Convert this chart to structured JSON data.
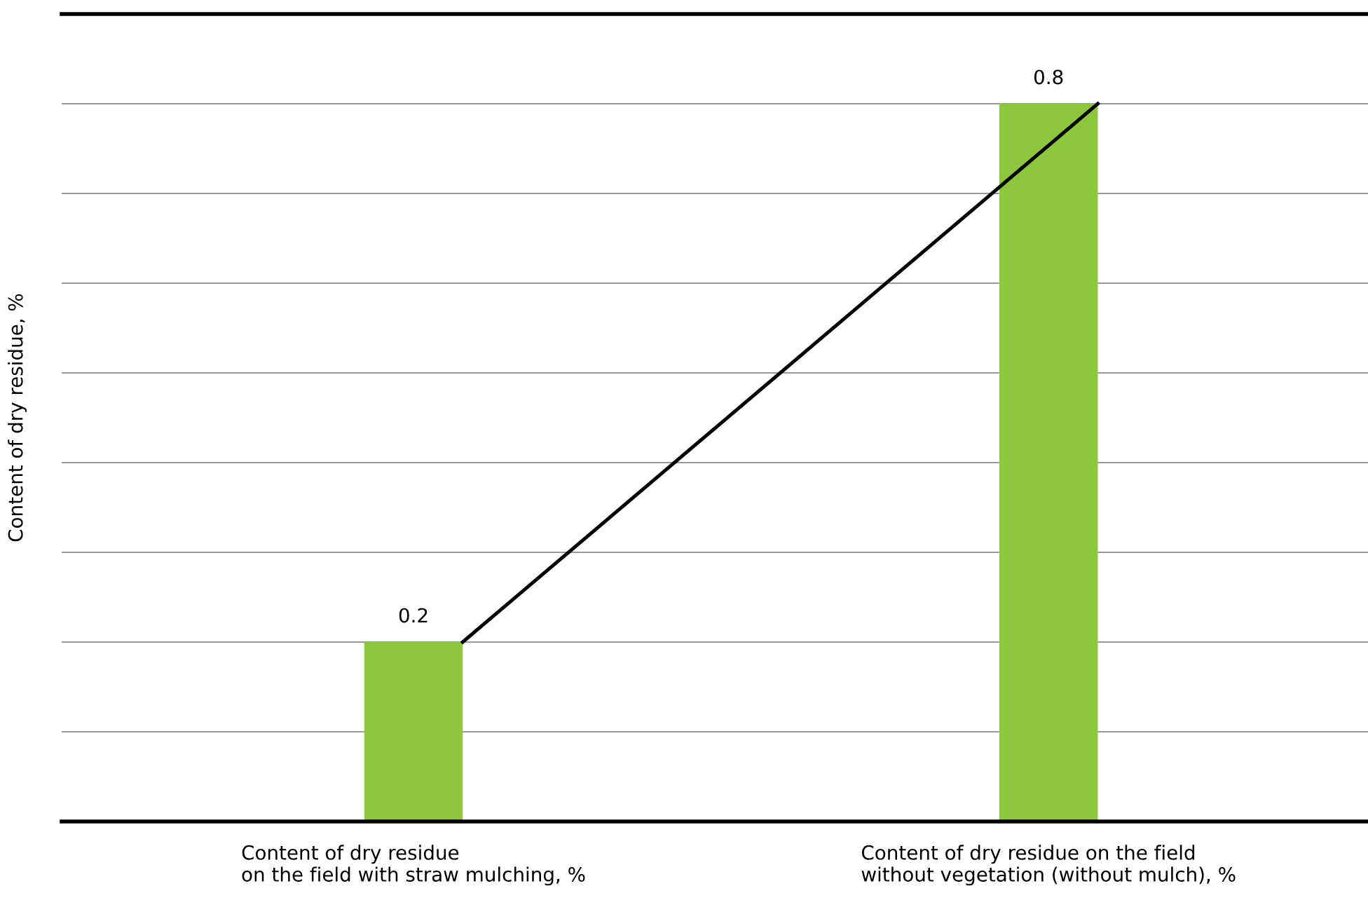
{
  "chart_data": {
    "type": "bar",
    "ylabel": "Content of dry residue, %",
    "categories": [
      "Content of dry residue\non the field with straw mulching, %",
      "Content of dry residue on the field\nwithout vegetation (without mulch), %"
    ],
    "series": [
      {
        "color": "#8dc63f",
        "values": [
          0.2,
          0.8
        ],
        "value_labels": [
          "0.2",
          "0.8"
        ]
      },
      {
        "type": "line",
        "color": "#000000",
        "values": [
          0.2,
          0.8
        ]
      }
    ],
    "ylim": [
      0,
      0.9
    ],
    "yticks": [
      {
        "value": 0,
        "label": null
      },
      {
        "value": 0.1,
        "label": null
      },
      {
        "value": 0.2,
        "label": null
      },
      {
        "value": 0.3,
        "label": null
      },
      {
        "value": 0.4,
        "label": null
      },
      {
        "value": 0.5,
        "label": null
      },
      {
        "value": 0.6,
        "label": null
      },
      {
        "value": 0.7,
        "label": null
      },
      {
        "value": 0.8,
        "label": null
      },
      {
        "value": 0.9,
        "label": null
      }
    ],
    "tick_labels": "x",
    "grid": "y",
    "marker": "none",
    "line_style": "solid"
  }
}
